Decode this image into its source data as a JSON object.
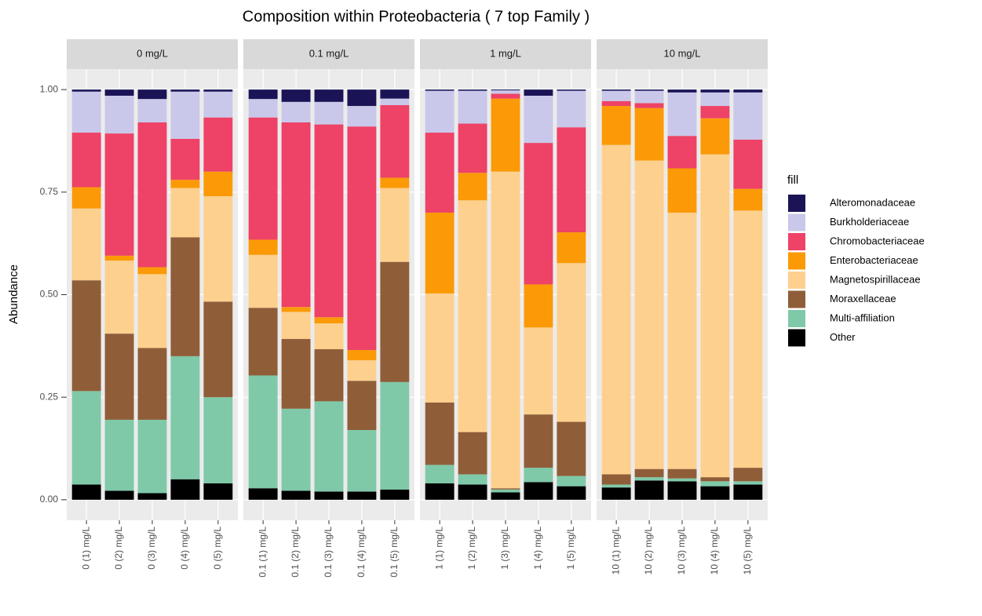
{
  "chart_data": {
    "type": "bar",
    "stacked": true,
    "title": "Composition within Proteobacteria ( 7 top Family )",
    "y_label": "Abundance",
    "legend_title": "fill",
    "legend_position": "right",
    "grid": true,
    "ylim": [
      -0.05,
      1.05
    ],
    "yticks": [
      {
        "value": 0,
        "label": "0.00"
      },
      0.25,
      {
        "value": 0.5,
        "label": "0.50"
      },
      0.75,
      {
        "value": 1,
        "label": "1.00"
      }
    ],
    "facets": [
      {
        "label": "0 mg/L",
        "categories": [
          "0 (1) mg/L",
          "0 (2) mg/L",
          "0 (3) mg/L",
          "0 (4) mg/L",
          "0 (5) mg/L"
        ]
      },
      {
        "label": "0.1 mg/L",
        "categories": [
          "0.1 (1) mg/L",
          "0.1 (2) mg/L",
          "0.1 (3) mg/L",
          "0.1 (4) mg/L",
          "0.1 (5) mg/L"
        ]
      },
      {
        "label": "1 mg/L",
        "categories": [
          "1 (1) mg/L",
          "1 (2) mg/L",
          "1 (3) mg/L",
          "1 (4) mg/L",
          "1 (5) mg/L"
        ]
      },
      {
        "label": "10 mg/L",
        "categories": [
          "10 (1) mg/L",
          "10 (2) mg/L",
          "10 (3) mg/L",
          "10 (4) mg/L",
          "10 (5) mg/L"
        ]
      }
    ],
    "series": [
      {
        "name": "Alteromonadaceae",
        "color": "#1a1457",
        "values": [
          0.005,
          0.015,
          0.023,
          0.005,
          0.005,
          0.023,
          0.03,
          0.03,
          0.04,
          0.022,
          0.003,
          0.003,
          0.002,
          0.015,
          0.003,
          0.003,
          0.003,
          0.007,
          0.007,
          0.007
        ]
      },
      {
        "name": "Burkholderiaceae",
        "color": "#c9c8ea",
        "values": [
          0.1,
          0.092,
          0.057,
          0.115,
          0.063,
          0.045,
          0.05,
          0.055,
          0.05,
          0.016,
          0.102,
          0.08,
          0.008,
          0.115,
          0.089,
          0.025,
          0.03,
          0.106,
          0.033,
          0.115
        ]
      },
      {
        "name": "Chromobacteriaceae",
        "color": "#ee4266",
        "values": [
          0.133,
          0.298,
          0.353,
          0.1,
          0.132,
          0.298,
          0.45,
          0.47,
          0.545,
          0.177,
          0.195,
          0.12,
          0.012,
          0.345,
          0.256,
          0.012,
          0.012,
          0.079,
          0.03,
          0.12
        ]
      },
      {
        "name": "Enterobacteriaceae",
        "color": "#fb9a06",
        "values": [
          0.052,
          0.012,
          0.017,
          0.02,
          0.06,
          0.037,
          0.012,
          0.015,
          0.025,
          0.025,
          0.197,
          0.067,
          0.178,
          0.105,
          0.075,
          0.095,
          0.128,
          0.108,
          0.088,
          0.053
        ]
      },
      {
        "name": "Magnetospirillaceae",
        "color": "#fdd08e",
        "values": [
          0.175,
          0.178,
          0.18,
          0.12,
          0.257,
          0.129,
          0.066,
          0.063,
          0.05,
          0.18,
          0.266,
          0.565,
          0.772,
          0.212,
          0.387,
          0.803,
          0.752,
          0.625,
          0.787,
          0.627
        ]
      },
      {
        "name": "Moraxellaceae",
        "color": "#8f5e38",
        "values": [
          0.27,
          0.21,
          0.175,
          0.29,
          0.233,
          0.165,
          0.17,
          0.127,
          0.12,
          0.293,
          0.152,
          0.103,
          0.003,
          0.13,
          0.132,
          0.025,
          0.02,
          0.023,
          0.01,
          0.033
        ]
      },
      {
        "name": "Multi-affiliation",
        "color": "#7fc9a9",
        "values": [
          0.228,
          0.173,
          0.179,
          0.3,
          0.21,
          0.275,
          0.2,
          0.22,
          0.15,
          0.262,
          0.045,
          0.025,
          0.007,
          0.035,
          0.025,
          0.007,
          0.008,
          0.007,
          0.012,
          0.008
        ]
      },
      {
        "name": "Other",
        "color": "#000000",
        "values": [
          0.037,
          0.022,
          0.016,
          0.05,
          0.04,
          0.028,
          0.022,
          0.02,
          0.02,
          0.025,
          0.04,
          0.037,
          0.018,
          0.043,
          0.033,
          0.03,
          0.047,
          0.045,
          0.033,
          0.037
        ]
      }
    ]
  }
}
